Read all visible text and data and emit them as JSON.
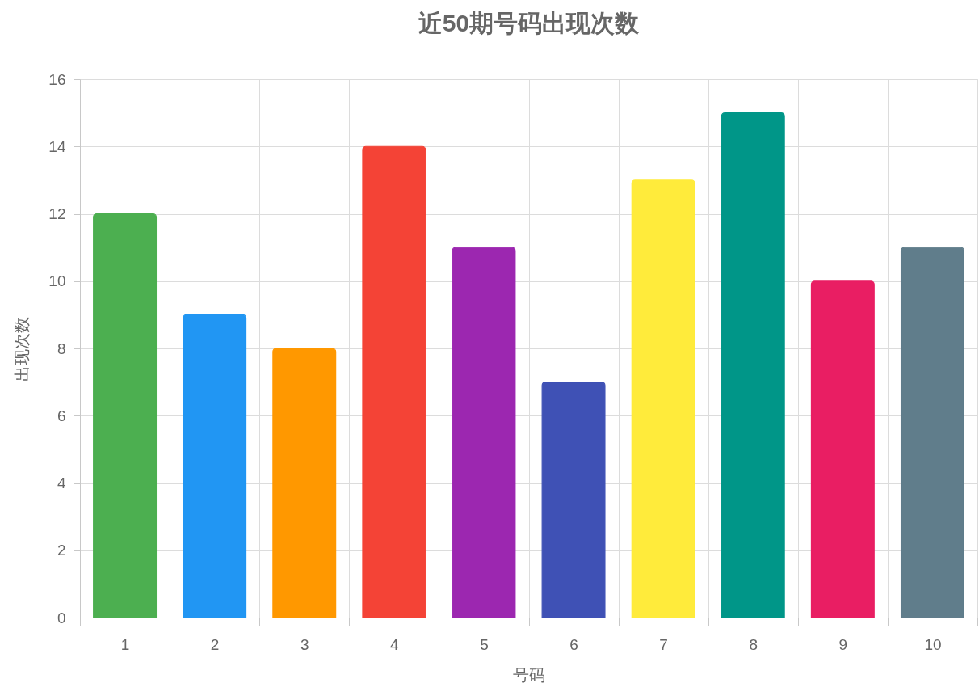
{
  "chart_data": {
    "type": "bar",
    "title": "近50期号码出现次数",
    "xlabel": "号码",
    "ylabel": "出现次数",
    "categories": [
      "1",
      "2",
      "3",
      "4",
      "5",
      "6",
      "7",
      "8",
      "9",
      "10"
    ],
    "values": [
      12,
      9,
      8,
      14,
      11,
      7,
      13,
      15,
      10,
      11
    ],
    "colors": [
      "#4caf50",
      "#2196f3",
      "#ff9800",
      "#f44336",
      "#9c27b0",
      "#3f51b5",
      "#ffeb3b",
      "#009688",
      "#e91e63",
      "#607d8b"
    ],
    "ylim": [
      0,
      16
    ],
    "yticks": [
      0,
      2,
      4,
      6,
      8,
      10,
      12,
      14,
      16
    ],
    "grid": true,
    "legend": false
  }
}
